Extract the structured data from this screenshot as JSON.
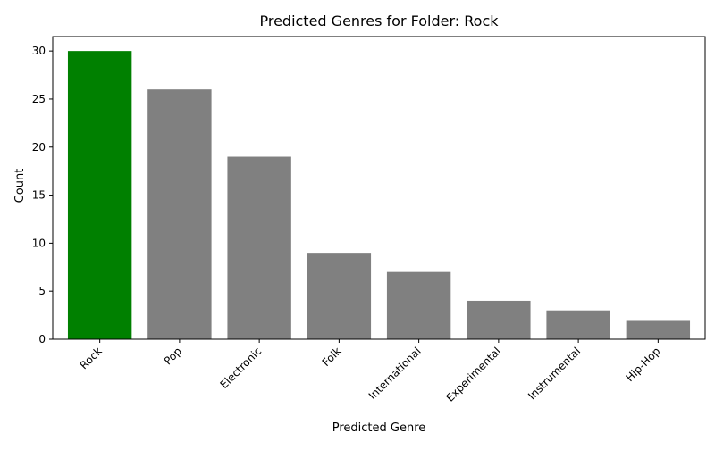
{
  "colors": {
    "highlight": "#008000",
    "default": "#808080"
  },
  "chart_data": {
    "type": "bar",
    "title": "Predicted Genres for Folder: Rock",
    "xlabel": "Predicted Genre",
    "ylabel": "Count",
    "categories": [
      "Rock",
      "Pop",
      "Electronic",
      "Folk",
      "International",
      "Experimental",
      "Instrumental",
      "Hip-Hop"
    ],
    "values": [
      30,
      26,
      19,
      9,
      7,
      4,
      3,
      2
    ],
    "highlight_category": "Rock",
    "ylim": [
      0,
      31.5
    ],
    "yticks": [
      0,
      5,
      10,
      15,
      20,
      25,
      30
    ],
    "grid": false,
    "legend": "none"
  }
}
